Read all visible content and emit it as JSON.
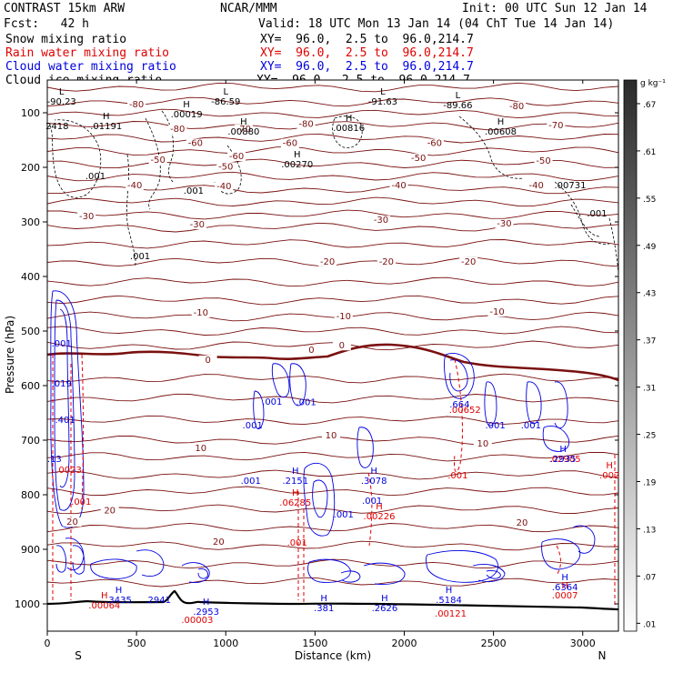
{
  "header": {
    "model": "CONTRAST 15km ARW",
    "center": "NCAR/MMM",
    "init": "Init: 00 UTC Sun 12 Jan 14",
    "fcst": "Fcst:   42 h",
    "valid": "Valid: 18 UTC Mon 13 Jan 14 (04 ChT Tue 14 Jan 14)",
    "xy": "XY=  96.0,  2.5 to  96.0,214.7"
  },
  "legend": [
    {
      "name": "Snow mixing ratio",
      "color": "#000000"
    },
    {
      "name": "Rain water mixing ratio",
      "color": "#e00000"
    },
    {
      "name": "Cloud water mixing ratio",
      "color": "#0000e0"
    },
    {
      "name": "Cloud ice mixing ratio",
      "color": "#000000"
    }
  ],
  "colors": {
    "temperature": "#7a1010",
    "freezing": "#7a1010",
    "rain": "#e00000",
    "cloud": "#0000e0",
    "snow": "#000000",
    "terrain": "#000000"
  },
  "chart_data": {
    "type": "line",
    "title": "",
    "xlabel": "Distance (km)",
    "ylabel": "Pressure (hPa)",
    "xlim": [
      0,
      3200
    ],
    "ylim": [
      1050,
      40
    ],
    "xticks": [
      0,
      500,
      1000,
      1500,
      2000,
      2500,
      3000
    ],
    "yticks": [
      100,
      200,
      300,
      400,
      500,
      600,
      700,
      800,
      900,
      1000
    ],
    "x_end_labels": [
      "S",
      "N"
    ],
    "grid": false,
    "colorbar": {
      "unit_label": "g kg⁻¹",
      "ticks": [
        ".01",
        ".07",
        ".13",
        ".19",
        ".25",
        ".31",
        ".37",
        ".43",
        ".49",
        ".55",
        ".61",
        ".67"
      ],
      "range": [
        0.0,
        0.7
      ]
    },
    "isotherm_labels": [
      {
        "x": 500,
        "p": 90,
        "label": "-80"
      },
      {
        "x": 1450,
        "p": 126,
        "label": "-80"
      },
      {
        "x": 2630,
        "p": 93,
        "label": "-80"
      },
      {
        "x": 2850,
        "p": 128,
        "label": "-70"
      },
      {
        "x": 1100,
        "p": 135,
        "label": "-70"
      },
      {
        "x": 730,
        "p": 135,
        "label": "-80"
      },
      {
        "x": 830,
        "p": 161,
        "label": "-60"
      },
      {
        "x": 1360,
        "p": 161,
        "label": "-60"
      },
      {
        "x": 2170,
        "p": 161,
        "label": "-60"
      },
      {
        "x": 1060,
        "p": 185,
        "label": "-60"
      },
      {
        "x": 620,
        "p": 192,
        "label": "-50"
      },
      {
        "x": 1000,
        "p": 204,
        "label": "-50"
      },
      {
        "x": 2080,
        "p": 188,
        "label": "-50"
      },
      {
        "x": 2780,
        "p": 193,
        "label": "-50"
      },
      {
        "x": 490,
        "p": 238,
        "label": "-40"
      },
      {
        "x": 990,
        "p": 240,
        "label": "-40"
      },
      {
        "x": 1970,
        "p": 238,
        "label": "-40"
      },
      {
        "x": 2740,
        "p": 238,
        "label": "-40"
      },
      {
        "x": 220,
        "p": 295,
        "label": "-30"
      },
      {
        "x": 840,
        "p": 310,
        "label": "-30"
      },
      {
        "x": 1870,
        "p": 302,
        "label": "-30"
      },
      {
        "x": 2560,
        "p": 308,
        "label": "-30"
      },
      {
        "x": 1570,
        "p": 378,
        "label": "-20"
      },
      {
        "x": 1900,
        "p": 378,
        "label": "-20"
      },
      {
        "x": 2360,
        "p": 378,
        "label": "-20"
      },
      {
        "x": 860,
        "p": 472,
        "label": "-10"
      },
      {
        "x": 1660,
        "p": 478,
        "label": "-10"
      },
      {
        "x": 2520,
        "p": 470,
        "label": "-10"
      },
      {
        "x": 900,
        "p": 558,
        "label": "0"
      },
      {
        "x": 1480,
        "p": 540,
        "label": "0"
      },
      {
        "x": 1650,
        "p": 532,
        "label": "0"
      },
      {
        "x": 860,
        "p": 720,
        "label": "10"
      },
      {
        "x": 1590,
        "p": 697,
        "label": "10"
      },
      {
        "x": 2440,
        "p": 712,
        "label": "10"
      },
      {
        "x": 140,
        "p": 855,
        "label": "20"
      },
      {
        "x": 350,
        "p": 834,
        "label": "20"
      },
      {
        "x": 960,
        "p": 892,
        "label": "20"
      },
      {
        "x": 2660,
        "p": 857,
        "label": "20"
      }
    ],
    "extrema_labels": [
      {
        "x": 80,
        "p": 85,
        "kind": "L",
        "value": "-90.23",
        "color": "#000000"
      },
      {
        "x": 1000,
        "p": 85,
        "kind": "L",
        "value": "-86.59",
        "color": "#000000"
      },
      {
        "x": 1880,
        "p": 85,
        "kind": "L",
        "value": "-91.63",
        "color": "#000000"
      },
      {
        "x": 2300,
        "p": 92,
        "kind": "L",
        "value": "-89.66",
        "color": "#000000"
      },
      {
        "x": 330,
        "p": 130,
        "kind": "H",
        "value": ".01191",
        "color": "#000000"
      },
      {
        "x": 780,
        "p": 108,
        "kind": "H",
        "value": ".00019",
        "color": "#000000"
      },
      {
        "x": 1100,
        "p": 140,
        "kind": "H",
        "value": ".00880",
        "color": "#000000"
      },
      {
        "x": 1690,
        "p": 133,
        "kind": "H",
        "value": ".00816",
        "color": "#000000"
      },
      {
        "x": 2540,
        "p": 140,
        "kind": "H",
        "value": ".00608",
        "color": "#000000"
      },
      {
        "x": 1400,
        "p": 200,
        "kind": "H",
        "value": ".00270",
        "color": "#000000"
      },
      {
        "x": 55,
        "p": 130,
        "kind": "",
        "value": "2418",
        "color": "#000000"
      },
      {
        "x": 2930,
        "p": 238,
        "kind": "",
        "value": ".00731",
        "color": "#000000"
      },
      {
        "x": 270,
        "p": 222,
        "kind": "",
        "value": ".001",
        "color": "#000000"
      },
      {
        "x": 820,
        "p": 248,
        "kind": "",
        "value": ".001",
        "color": "#000000"
      },
      {
        "x": 520,
        "p": 368,
        "kind": "",
        "value": ".001",
        "color": "#000000"
      },
      {
        "x": 3080,
        "p": 290,
        "kind": "",
        "value": ".001",
        "color": "#000000"
      },
      {
        "x": 2340,
        "p": 650,
        "kind": "",
        "value": ".00652",
        "color": "#e00000"
      },
      {
        "x": 2300,
        "p": 770,
        "kind": "",
        "value": ".001",
        "color": "#e00000"
      },
      {
        "x": 120,
        "p": 760,
        "kind": "",
        "value": ".0023",
        "color": "#e00000"
      },
      {
        "x": 190,
        "p": 818,
        "kind": "",
        "value": ".001",
        "color": "#e00000"
      },
      {
        "x": 1390,
        "p": 820,
        "kind": "H",
        "value": ".06285",
        "color": "#e00000"
      },
      {
        "x": 1860,
        "p": 845,
        "kind": "H",
        "value": ".00226",
        "color": "#e00000"
      },
      {
        "x": 1400,
        "p": 893,
        "kind": "",
        "value": ".001",
        "color": "#e00000"
      },
      {
        "x": 3150,
        "p": 770,
        "kind": "H",
        "value": ".002",
        "color": "#e00000"
      },
      {
        "x": 2900,
        "p": 990,
        "kind": "H",
        "value": ".0007",
        "color": "#e00000"
      },
      {
        "x": 320,
        "p": 1008,
        "kind": "H",
        "value": ".00064",
        "color": "#e00000"
      },
      {
        "x": 840,
        "p": 1035,
        "kind": "",
        "value": ".00003",
        "color": "#e00000"
      },
      {
        "x": 2260,
        "p": 1023,
        "kind": "",
        "value": ".00121",
        "color": "#e00000"
      },
      {
        "x": 2900,
        "p": 740,
        "kind": "",
        "value": ".02905",
        "color": "#e00000"
      },
      {
        "x": 80,
        "p": 528,
        "kind": "",
        "value": ".001",
        "color": "#0000e0"
      },
      {
        "x": 80,
        "p": 602,
        "kind": "",
        "value": ".019",
        "color": "#0000e0"
      },
      {
        "x": 100,
        "p": 668,
        "kind": "",
        "value": ".401",
        "color": "#0000e0"
      },
      {
        "x": 40,
        "p": 740,
        "kind": "",
        "value": ".13",
        "color": "#0000e0"
      },
      {
        "x": 1260,
        "p": 635,
        "kind": "",
        "value": ".001",
        "color": "#0000e0"
      },
      {
        "x": 1450,
        "p": 636,
        "kind": "",
        "value": ".001",
        "color": "#0000e0"
      },
      {
        "x": 1150,
        "p": 678,
        "kind": "",
        "value": ".001",
        "color": "#0000e0"
      },
      {
        "x": 1140,
        "p": 780,
        "kind": "",
        "value": ".001",
        "color": "#0000e0"
      },
      {
        "x": 1390,
        "p": 780,
        "kind": "H",
        "value": ".2151",
        "color": "#0000e0"
      },
      {
        "x": 1830,
        "p": 780,
        "kind": "H",
        "value": ".3078",
        "color": "#0000e0"
      },
      {
        "x": 1820,
        "p": 817,
        "kind": "",
        "value": ".001",
        "color": "#0000e0"
      },
      {
        "x": 1660,
        "p": 842,
        "kind": "",
        "value": ".001",
        "color": "#0000e0"
      },
      {
        "x": 2310,
        "p": 640,
        "kind": "",
        "value": ".664",
        "color": "#0000e0"
      },
      {
        "x": 2510,
        "p": 678,
        "kind": "",
        "value": ".001",
        "color": "#0000e0"
      },
      {
        "x": 2710,
        "p": 678,
        "kind": "",
        "value": ".001",
        "color": "#0000e0"
      },
      {
        "x": 2890,
        "p": 740,
        "kind": "H",
        "value": ".2935",
        "color": "#0000e0"
      },
      {
        "x": 400,
        "p": 998,
        "kind": "H",
        "value": ".3435",
        "color": "#0000e0"
      },
      {
        "x": 620,
        "p": 998,
        "kind": "",
        "value": ".2941",
        "color": "#0000e0"
      },
      {
        "x": 890,
        "p": 1020,
        "kind": "H",
        "value": ".2953",
        "color": "#0000e0"
      },
      {
        "x": 1550,
        "p": 1013,
        "kind": "H",
        "value": ".381",
        "color": "#0000e0"
      },
      {
        "x": 1890,
        "p": 1013,
        "kind": "H",
        "value": ".2626",
        "color": "#0000e0"
      },
      {
        "x": 2250,
        "p": 998,
        "kind": "H",
        "value": ".5184",
        "color": "#0000e0"
      },
      {
        "x": 2900,
        "p": 975,
        "kind": "H",
        "value": ".6364",
        "color": "#0000e0"
      }
    ]
  }
}
